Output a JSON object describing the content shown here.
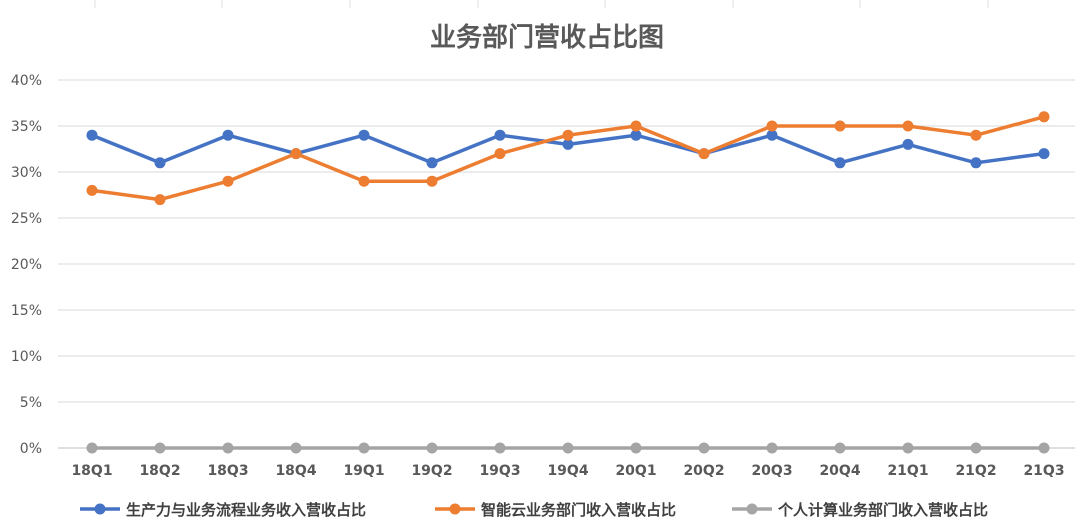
{
  "chart_data": {
    "type": "line",
    "title": "业务部门营收占比图",
    "categories": [
      "18Q1",
      "18Q2",
      "18Q3",
      "18Q4",
      "19Q1",
      "19Q2",
      "19Q3",
      "19Q4",
      "20Q1",
      "20Q2",
      "20Q3",
      "20Q4",
      "21Q1",
      "21Q2",
      "21Q3"
    ],
    "ylim": [
      0,
      40
    ],
    "yticks": [
      0,
      5,
      10,
      15,
      20,
      25,
      30,
      35,
      40
    ],
    "ytick_labels": [
      "0%",
      "5%",
      "10%",
      "15%",
      "20%",
      "25%",
      "30%",
      "35%",
      "40%"
    ],
    "grid": true,
    "legend_position": "bottom",
    "series": [
      {
        "name": "生产力与业务流程业务收入营收占比",
        "color": "#4472C4",
        "values": [
          34,
          31,
          34,
          32,
          34,
          31,
          34,
          33,
          34,
          32,
          34,
          31,
          33,
          31,
          32
        ]
      },
      {
        "name": "智能云业务部门收入营收占比",
        "color": "#ED7D31",
        "values": [
          28,
          27,
          29,
          32,
          29,
          29,
          32,
          34,
          35,
          32,
          35,
          35,
          35,
          34,
          36
        ]
      },
      {
        "name": "个人计算业务部门收入营收占比",
        "color": "#A5A5A5",
        "values": [
          0,
          0,
          0,
          0,
          0,
          0,
          0,
          0,
          0,
          0,
          0,
          0,
          0,
          0,
          0
        ]
      }
    ]
  }
}
